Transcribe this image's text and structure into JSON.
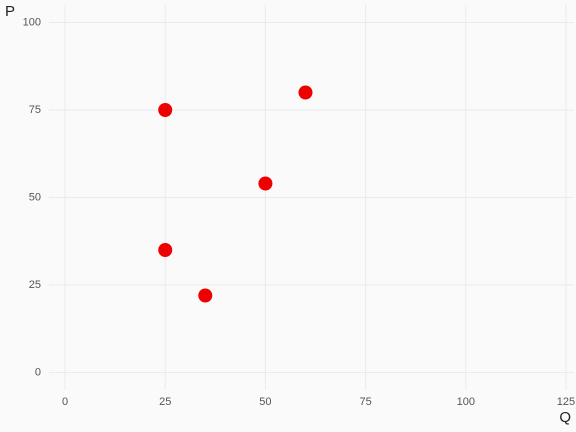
{
  "chart_data": {
    "type": "scatter",
    "x_label": "Q",
    "y_label": "P",
    "x": [
      25,
      60,
      50,
      25,
      35
    ],
    "values": [
      75,
      80,
      54,
      35,
      22
    ],
    "color": "#ee0000",
    "xlim": [
      -4,
      127
    ],
    "ylim": [
      -5,
      105
    ],
    "xticks": [
      0,
      25,
      50,
      75,
      100,
      125
    ],
    "yticks": [
      0,
      25,
      50,
      75,
      100
    ],
    "grid": true
  }
}
